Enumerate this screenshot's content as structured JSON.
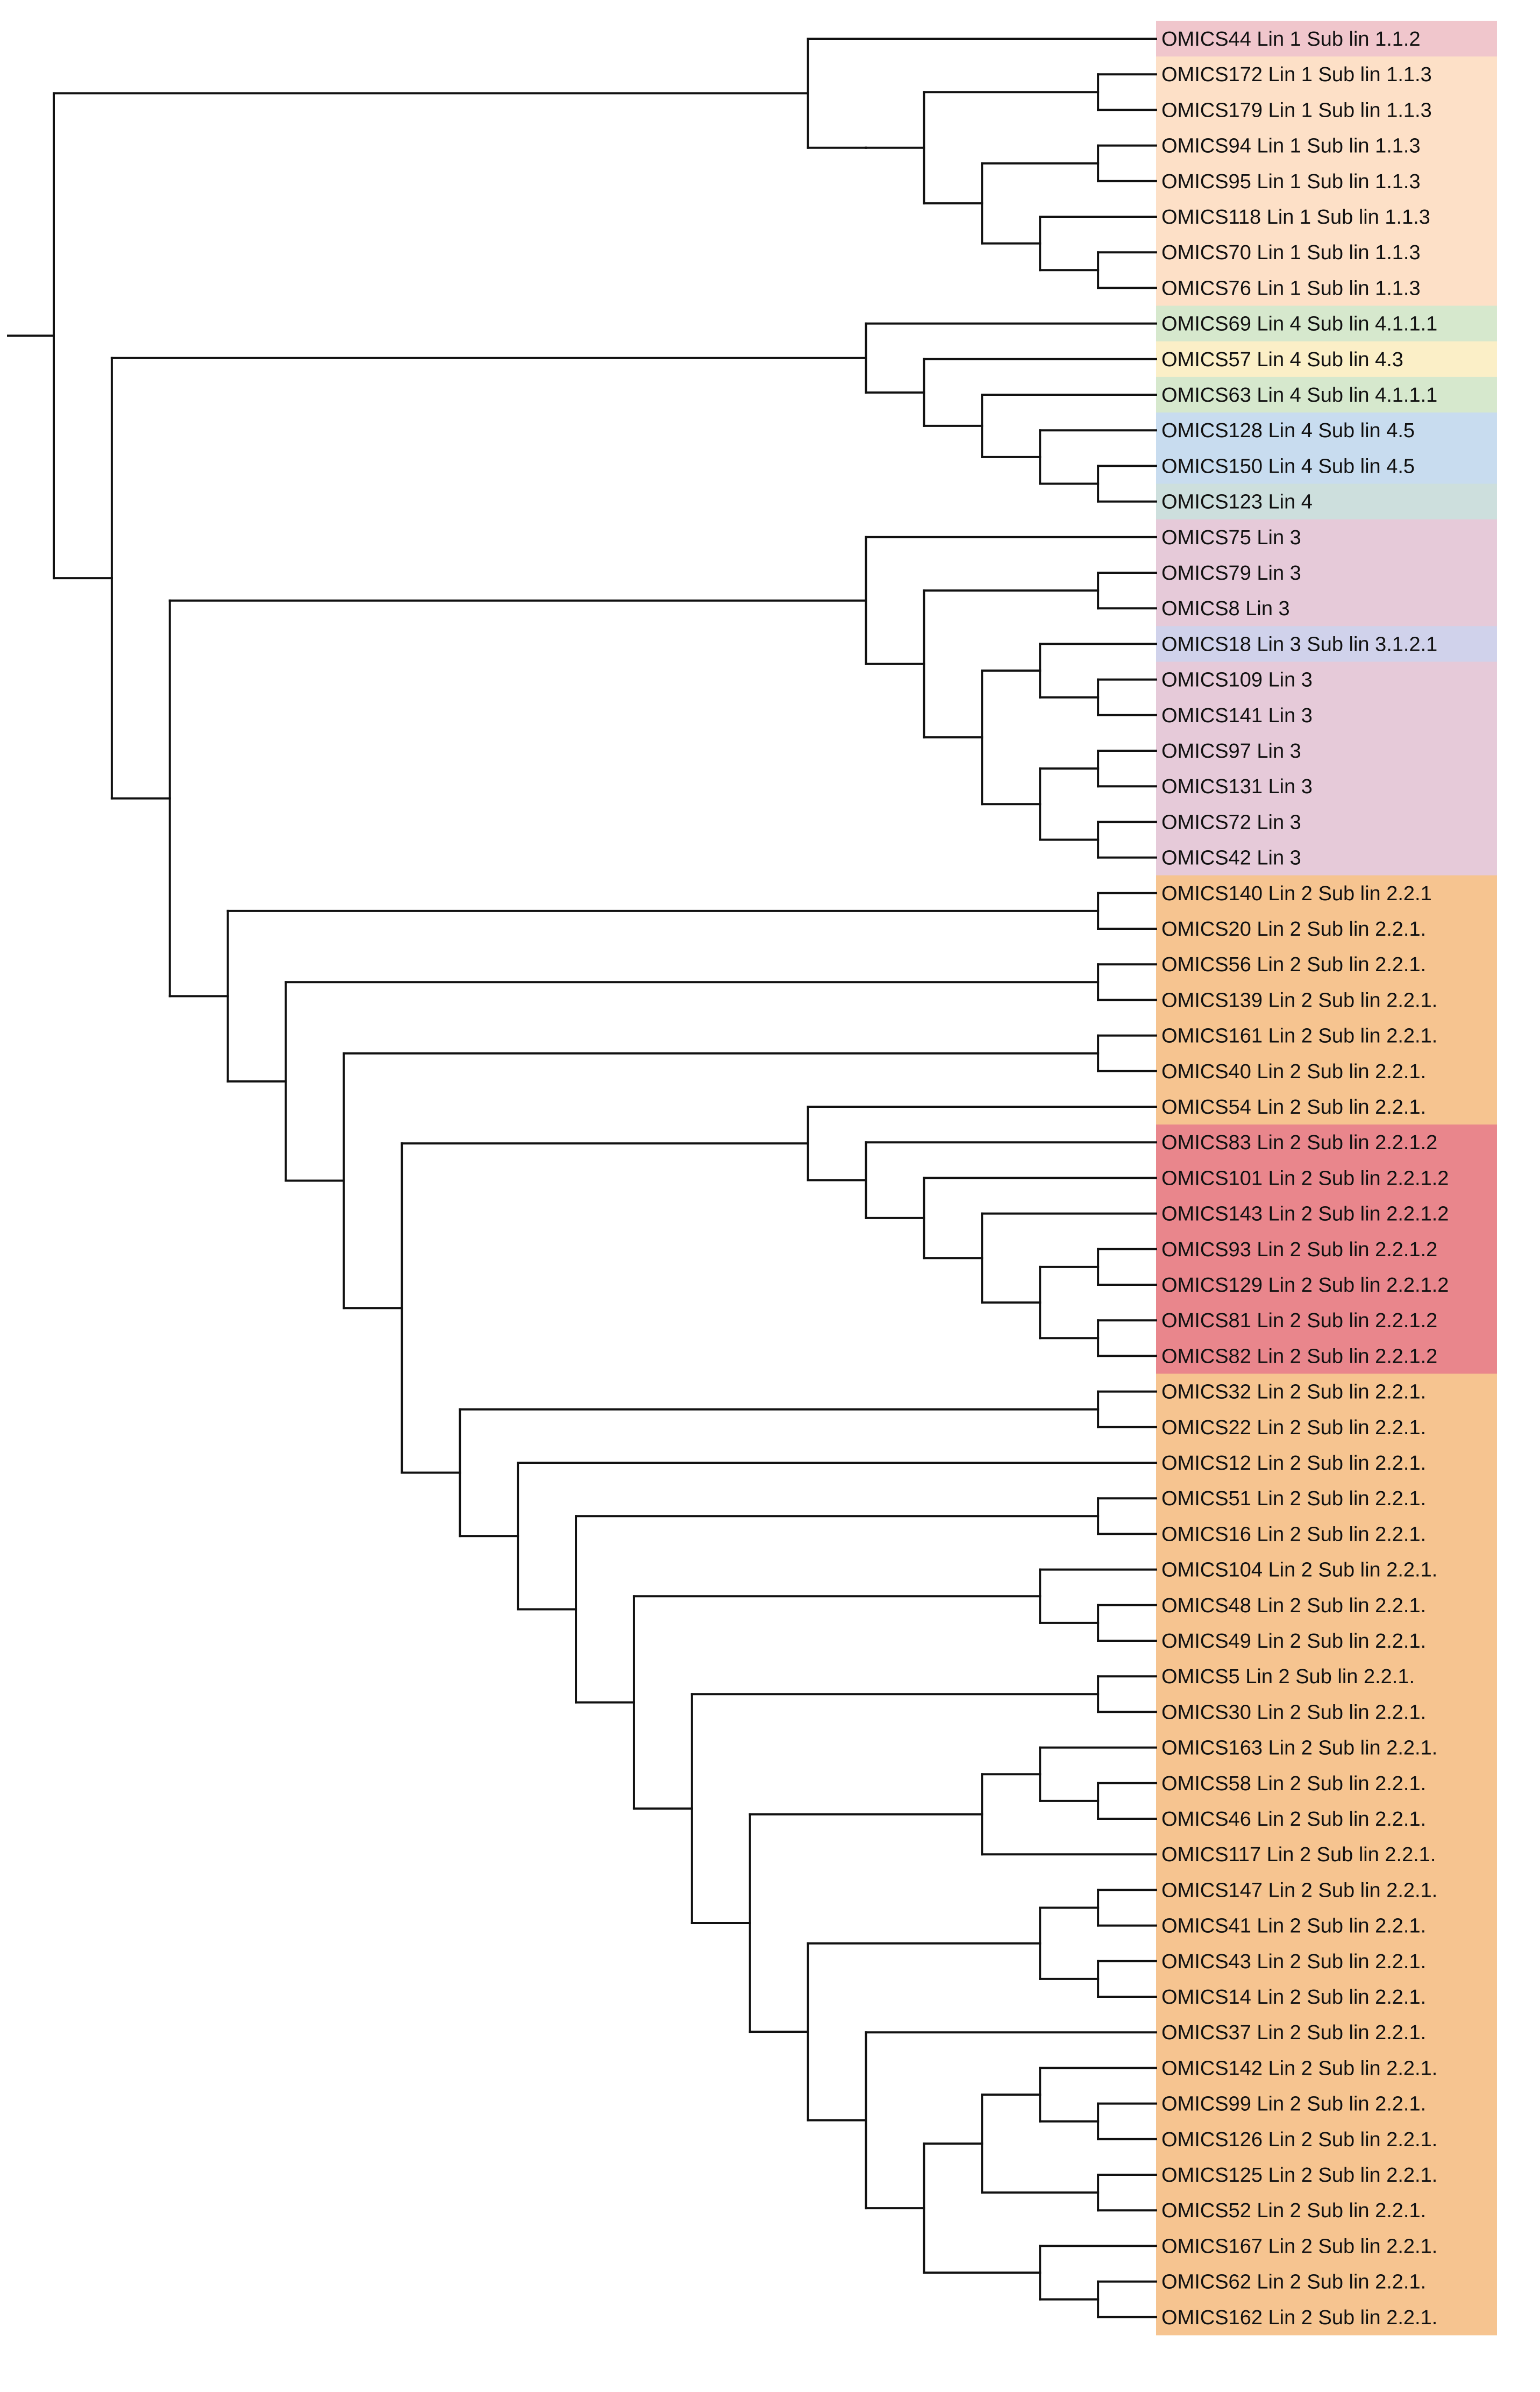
{
  "colors": {
    "1.1.2": "#f0c6cc",
    "1.1.3": "#fde0c7",
    "4.1.1.1": "#d6e8cd",
    "4.3": "#fbefc7",
    "4.5": "#c8dcef",
    "lin4": "#cddfdd",
    "lin3": "#e6cad9",
    "3.1.2.1": "#d0d2eb",
    "2.2.1": "#f6c490",
    "2.2.1.2": "#e9868c"
  },
  "leaves": [
    {
      "label": "OMICS44 Lin 1 Sub lin 1.1.2",
      "color": "1.1.2"
    },
    {
      "label": "OMICS172 Lin 1 Sub lin 1.1.3",
      "color": "1.1.3"
    },
    {
      "label": "OMICS179 Lin 1 Sub lin 1.1.3",
      "color": "1.1.3"
    },
    {
      "label": "OMICS94 Lin 1 Sub lin 1.1.3",
      "color": "1.1.3"
    },
    {
      "label": "OMICS95 Lin 1 Sub lin 1.1.3",
      "color": "1.1.3"
    },
    {
      "label": "OMICS118 Lin 1 Sub lin 1.1.3",
      "color": "1.1.3"
    },
    {
      "label": "OMICS70 Lin 1 Sub lin 1.1.3",
      "color": "1.1.3"
    },
    {
      "label": "OMICS76 Lin 1 Sub lin 1.1.3",
      "color": "1.1.3"
    },
    {
      "label": "OMICS69 Lin 4 Sub lin 4.1.1.1",
      "color": "4.1.1.1"
    },
    {
      "label": "OMICS57 Lin 4 Sub lin 4.3",
      "color": "4.3"
    },
    {
      "label": "OMICS63 Lin 4 Sub lin 4.1.1.1",
      "color": "4.1.1.1"
    },
    {
      "label": "OMICS128 Lin 4 Sub lin 4.5",
      "color": "4.5"
    },
    {
      "label": "OMICS150 Lin 4 Sub lin 4.5",
      "color": "4.5"
    },
    {
      "label": "OMICS123 Lin 4",
      "color": "lin4"
    },
    {
      "label": "OMICS75 Lin 3",
      "color": "lin3"
    },
    {
      "label": "OMICS79 Lin 3",
      "color": "lin3"
    },
    {
      "label": "OMICS8 Lin 3",
      "color": "lin3"
    },
    {
      "label": "OMICS18 Lin 3 Sub lin 3.1.2.1",
      "color": "3.1.2.1"
    },
    {
      "label": "OMICS109 Lin 3",
      "color": "lin3"
    },
    {
      "label": "OMICS141 Lin 3",
      "color": "lin3"
    },
    {
      "label": "OMICS97 Lin 3",
      "color": "lin3"
    },
    {
      "label": "OMICS131 Lin 3",
      "color": "lin3"
    },
    {
      "label": "OMICS72 Lin 3",
      "color": "lin3"
    },
    {
      "label": "OMICS42 Lin 3",
      "color": "lin3"
    },
    {
      "label": "OMICS140 Lin 2 Sub lin 2.2.1",
      "color": "2.2.1"
    },
    {
      "label": "OMICS20 Lin 2 Sub lin 2.2.1.",
      "color": "2.2.1"
    },
    {
      "label": "OMICS56 Lin 2 Sub lin 2.2.1.",
      "color": "2.2.1"
    },
    {
      "label": "OMICS139 Lin 2 Sub lin 2.2.1.",
      "color": "2.2.1"
    },
    {
      "label": "OMICS161 Lin 2 Sub lin 2.2.1.",
      "color": "2.2.1"
    },
    {
      "label": "OMICS40 Lin 2 Sub lin 2.2.1.",
      "color": "2.2.1"
    },
    {
      "label": "OMICS54 Lin 2 Sub lin 2.2.1.",
      "color": "2.2.1"
    },
    {
      "label": "OMICS83 Lin 2 Sub lin 2.2.1.2",
      "color": "2.2.1.2"
    },
    {
      "label": "OMICS101 Lin 2 Sub lin 2.2.1.2",
      "color": "2.2.1.2"
    },
    {
      "label": "OMICS143 Lin 2 Sub lin 2.2.1.2",
      "color": "2.2.1.2"
    },
    {
      "label": "OMICS93 Lin 2 Sub lin 2.2.1.2",
      "color": "2.2.1.2"
    },
    {
      "label": "OMICS129 Lin 2 Sub lin 2.2.1.2",
      "color": "2.2.1.2"
    },
    {
      "label": "OMICS81 Lin 2 Sub lin 2.2.1.2",
      "color": "2.2.1.2"
    },
    {
      "label": "OMICS82 Lin 2 Sub lin 2.2.1.2",
      "color": "2.2.1.2"
    },
    {
      "label": "OMICS32 Lin 2 Sub lin 2.2.1.",
      "color": "2.2.1"
    },
    {
      "label": "OMICS22 Lin 2 Sub lin 2.2.1.",
      "color": "2.2.1"
    },
    {
      "label": "OMICS12 Lin 2 Sub lin 2.2.1.",
      "color": "2.2.1"
    },
    {
      "label": "OMICS51 Lin 2 Sub lin 2.2.1.",
      "color": "2.2.1"
    },
    {
      "label": "OMICS16 Lin 2 Sub lin 2.2.1.",
      "color": "2.2.1"
    },
    {
      "label": "OMICS104 Lin 2 Sub lin 2.2.1.",
      "color": "2.2.1"
    },
    {
      "label": "OMICS48 Lin 2 Sub lin 2.2.1.",
      "color": "2.2.1"
    },
    {
      "label": "OMICS49 Lin 2 Sub lin 2.2.1.",
      "color": "2.2.1"
    },
    {
      "label": "OMICS5 Lin 2 Sub lin 2.2.1.",
      "color": "2.2.1"
    },
    {
      "label": "OMICS30 Lin 2 Sub lin 2.2.1.",
      "color": "2.2.1"
    },
    {
      "label": "OMICS163 Lin 2 Sub lin 2.2.1.",
      "color": "2.2.1"
    },
    {
      "label": "OMICS58 Lin 2 Sub lin 2.2.1.",
      "color": "2.2.1"
    },
    {
      "label": "OMICS46 Lin 2 Sub lin 2.2.1.",
      "color": "2.2.1"
    },
    {
      "label": "OMICS117 Lin 2 Sub lin 2.2.1.",
      "color": "2.2.1"
    },
    {
      "label": "OMICS147 Lin 2 Sub lin 2.2.1.",
      "color": "2.2.1"
    },
    {
      "label": "OMICS41 Lin 2 Sub lin 2.2.1.",
      "color": "2.2.1"
    },
    {
      "label": "OMICS43 Lin 2 Sub lin 2.2.1.",
      "color": "2.2.1"
    },
    {
      "label": "OMICS14 Lin 2 Sub lin 2.2.1.",
      "color": "2.2.1"
    },
    {
      "label": "OMICS37 Lin 2 Sub lin 2.2.1.",
      "color": "2.2.1"
    },
    {
      "label": "OMICS142 Lin 2 Sub lin 2.2.1.",
      "color": "2.2.1"
    },
    {
      "label": "OMICS99 Lin 2 Sub lin 2.2.1.",
      "color": "2.2.1"
    },
    {
      "label": "OMICS126 Lin 2 Sub lin 2.2.1.",
      "color": "2.2.1"
    },
    {
      "label": "OMICS125 Lin 2 Sub lin 2.2.1.",
      "color": "2.2.1"
    },
    {
      "label": "OMICS52 Lin 2 Sub lin 2.2.1.",
      "color": "2.2.1"
    },
    {
      "label": "OMICS167 Lin 2 Sub lin 2.2.1.",
      "color": "2.2.1"
    },
    {
      "label": "OMICS62 Lin 2 Sub lin 2.2.1.",
      "color": "2.2.1"
    },
    {
      "label": "OMICS162 Lin 2 Sub lin 2.2.1.",
      "color": "2.2.1"
    }
  ],
  "tree": "((0,(((1,2),((3,4),(5,(6,7)))))),((8,(9,(10,(11,(12,13))))),((14,((15,16),((17,(18,19)),((20,21),(22,23))))),((24,25),((26,27),((28,29),((30,(31,(32,(33,((34,35),(36,37)))))),((38,39),(40,((41,42),((43,(44,45)),((46,47),(((48,(49,50)),51),(((52,53),(54,55)),(56,(((57,(58,59)),(60,61)),(62,(63,64)))))))))))))))))))"
}
